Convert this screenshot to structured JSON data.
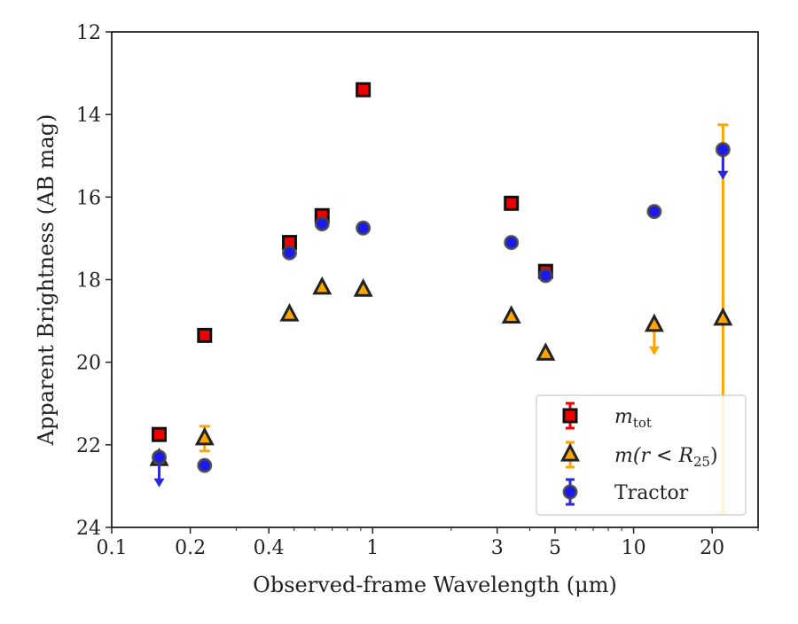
{
  "chart_data": {
    "type": "scatter",
    "xlabel": "Observed-frame Wavelength (μm)",
    "ylabel": "Apparent Brightness (AB mag)",
    "x_scale": "log",
    "xlim": [
      0.1,
      30
    ],
    "ylim": [
      24,
      12
    ],
    "y_inverted": true,
    "grid": false,
    "legend_position": "lower-right",
    "x_ticks": [
      {
        "value": 0.1,
        "label": "0.1"
      },
      {
        "value": 0.2,
        "label": "0.2"
      },
      {
        "value": 0.4,
        "label": "0.4"
      },
      {
        "value": 1,
        "label": "1"
      },
      {
        "value": 3,
        "label": "3"
      },
      {
        "value": 5,
        "label": "5"
      },
      {
        "value": 10,
        "label": "10"
      },
      {
        "value": 20,
        "label": "20"
      }
    ],
    "y_ticks": [
      {
        "value": 12,
        "label": "12"
      },
      {
        "value": 14,
        "label": "14"
      },
      {
        "value": 16,
        "label": "16"
      },
      {
        "value": 18,
        "label": "18"
      },
      {
        "value": 20,
        "label": "20"
      },
      {
        "value": 22,
        "label": "22"
      },
      {
        "value": 24,
        "label": "24"
      }
    ],
    "series": [
      {
        "name": "m_tot",
        "legend_main": "m",
        "legend_sub": "tot",
        "marker": "square",
        "face_color": "#ee0000",
        "edge_color": "#111111",
        "error_color": "#ee0000",
        "points": [
          {
            "x": 0.152,
            "y": 21.75
          },
          {
            "x": 0.227,
            "y": 19.35
          },
          {
            "x": 0.48,
            "y": 17.1
          },
          {
            "x": 0.64,
            "y": 16.45
          },
          {
            "x": 0.92,
            "y": 13.4
          },
          {
            "x": 3.4,
            "y": 16.15
          },
          {
            "x": 4.6,
            "y": 17.8
          }
        ]
      },
      {
        "name": "m(r < R25)",
        "legend_main": "m(r < R",
        "legend_sub": "25",
        "legend_end": ")",
        "marker": "triangle",
        "face_color": "#ffa500",
        "edge_color": "#222222",
        "error_color": "#ffa500",
        "points": [
          {
            "x": 0.152,
            "y": 22.35
          },
          {
            "x": 0.227,
            "y": 21.85,
            "yerr": 0.3
          },
          {
            "x": 0.48,
            "y": 18.85
          },
          {
            "x": 0.64,
            "y": 18.2
          },
          {
            "x": 0.92,
            "y": 18.25
          },
          {
            "x": 3.4,
            "y": 18.9
          },
          {
            "x": 4.6,
            "y": 19.8
          },
          {
            "x": 12.0,
            "y": 19.1,
            "upper_limit": true
          },
          {
            "x": 22.0,
            "y": 18.95,
            "yerr_low": 4.7,
            "yerr_high": 4.7
          }
        ]
      },
      {
        "name": "Tractor",
        "legend_main": "Tractor",
        "marker": "circle",
        "face_color": "#1a1aee",
        "edge_color": "#444444",
        "error_color": "#2a2add",
        "points": [
          {
            "x": 0.152,
            "y": 22.3,
            "upper_limit": true
          },
          {
            "x": 0.227,
            "y": 22.5
          },
          {
            "x": 0.48,
            "y": 17.35
          },
          {
            "x": 0.64,
            "y": 16.65
          },
          {
            "x": 0.92,
            "y": 16.75
          },
          {
            "x": 3.4,
            "y": 17.1
          },
          {
            "x": 4.6,
            "y": 17.9
          },
          {
            "x": 12.0,
            "y": 16.35
          },
          {
            "x": 22.0,
            "y": 14.85,
            "upper_limit": true
          }
        ]
      }
    ]
  }
}
